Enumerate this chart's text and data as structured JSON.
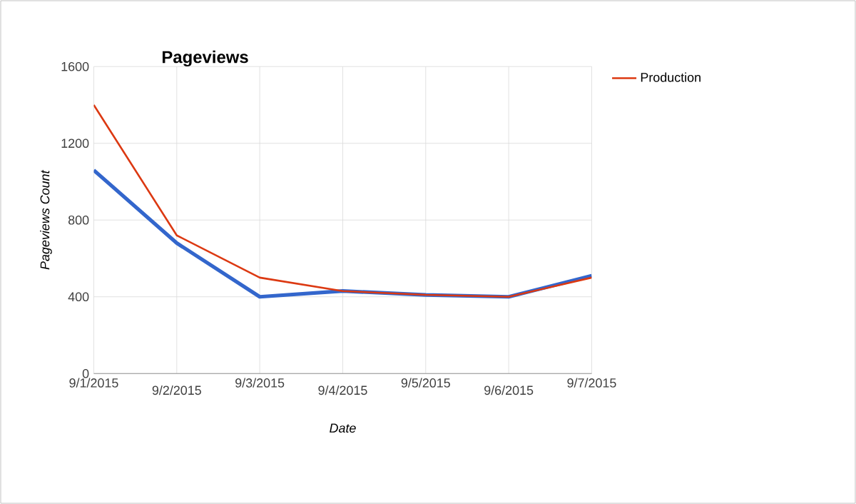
{
  "chart_data": {
    "type": "line",
    "title": "Pageviews",
    "xlabel": "Date",
    "ylabel": "Pageviews Count",
    "categories": [
      "9/1/2015",
      "9/2/2015",
      "9/3/2015",
      "9/4/2015",
      "9/5/2015",
      "9/6/2015",
      "9/7/2015"
    ],
    "series": [
      {
        "color": "#3366cc",
        "values": [
          1060,
          680,
          400,
          430,
          410,
          400,
          510
        ]
      },
      {
        "name": "Production",
        "color": "#dc3912",
        "values": [
          1400,
          720,
          500,
          430,
          410,
          400,
          500
        ]
      }
    ],
    "ylim": [
      0,
      1600
    ],
    "yticks": [
      0,
      400,
      800,
      1200,
      1600
    ],
    "grid": true,
    "legend": "top right",
    "marker": "none",
    "line_style": "solid"
  }
}
